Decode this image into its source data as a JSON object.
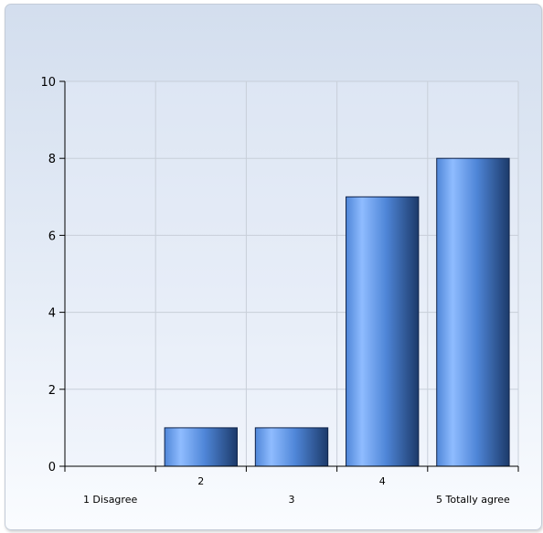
{
  "chart_data": {
    "type": "bar",
    "categories": [
      "1 Disagree",
      "2",
      "3",
      "4",
      "5 Totally agree"
    ],
    "values": [
      0,
      1,
      1,
      7,
      8
    ],
    "ylim": [
      0,
      10
    ],
    "yticks": [
      0,
      2,
      4,
      6,
      8,
      10
    ],
    "grid": true,
    "legend": "none",
    "title": "",
    "xlabel": "",
    "ylabel": ""
  },
  "colors": {
    "bar_light": "#8fbcff",
    "bar_mid": "#4f86d8",
    "bar_dark": "#1c3a6a",
    "bar_stroke": "#10244a",
    "grid": "#c8cfd9",
    "axis": "#000000"
  }
}
